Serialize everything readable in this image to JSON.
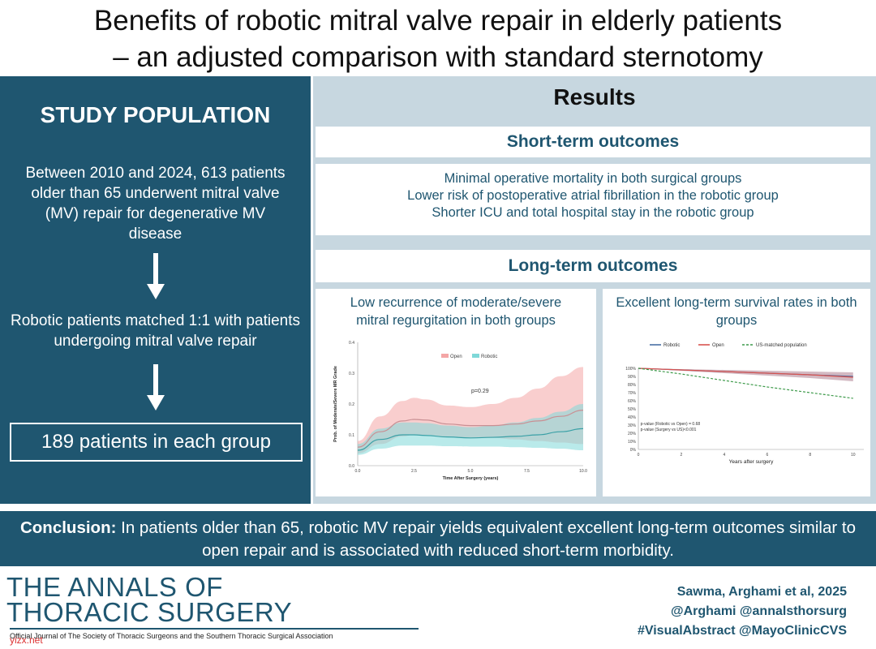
{
  "title": {
    "line1": "Benefits of robotic mitral valve repair in elderly patients",
    "line2": "– an adjusted comparison with standard sternotomy"
  },
  "study_population": {
    "heading": "STUDY POPULATION",
    "description": "Between 2010 and 2024, 613 patients older than 65 underwent mitral valve (MV) repair for degenerative MV disease",
    "matching": "Robotic patients matched 1:1 with patients undergoing mitral valve repair",
    "result_box": "189 patients in each group"
  },
  "results": {
    "heading": "Results",
    "short_term": {
      "title": "Short-term outcomes",
      "items": [
        "Minimal operative mortality in both surgical groups",
        "Lower risk of postoperative atrial fibrillation in the robotic group",
        "Shorter ICU and total hospital stay in the robotic group"
      ]
    },
    "long_term": {
      "title": "Long-term outcomes",
      "mr_card_title": "Low recurrence of moderate/severe mitral regurgitation in both groups",
      "survival_card_title": "Excellent long-term survival rates in both groups"
    }
  },
  "chart_data": [
    {
      "type": "area",
      "title": "Low recurrence of moderate/severe mitral regurgitation in both groups",
      "xlabel": "Time After Surgery (years)",
      "ylabel": "Prob. of Moderate/Severe MR Grade",
      "xlim": [
        0,
        10
      ],
      "ylim": [
        0,
        0.4
      ],
      "xticks": [
        0,
        2.5,
        5,
        7.5,
        10
      ],
      "xtick_labels": [
        "0.0",
        "2.5",
        "5.0",
        "7.5",
        "10.0"
      ],
      "yticks": [
        0,
        0.1,
        0.2,
        0.3,
        0.4
      ],
      "ytick_labels": [
        "0.0",
        "0.1",
        "0.2",
        "0.3",
        "0.4"
      ],
      "annotation": "p=0.29",
      "legend": [
        "Open",
        "Robotic"
      ],
      "x": [
        0,
        1,
        2,
        2.5,
        3,
        4,
        5,
        6,
        7,
        8,
        9,
        10
      ],
      "series": [
        {
          "name": "Open",
          "color": "#f4a6a6",
          "line_color": "#c98f93",
          "values": [
            0.06,
            0.11,
            0.145,
            0.15,
            0.148,
            0.135,
            0.13,
            0.13,
            0.135,
            0.145,
            0.16,
            0.18
          ],
          "lower": [
            0.04,
            0.07,
            0.095,
            0.1,
            0.1,
            0.095,
            0.09,
            0.09,
            0.085,
            0.08,
            0.075,
            0.07
          ],
          "upper": [
            0.08,
            0.16,
            0.21,
            0.22,
            0.215,
            0.195,
            0.19,
            0.2,
            0.22,
            0.25,
            0.29,
            0.32
          ]
        },
        {
          "name": "Robotic",
          "color": "#7fd8d8",
          "line_color": "#3aa0a6",
          "values": [
            0.05,
            0.085,
            0.1,
            0.1,
            0.098,
            0.093,
            0.09,
            0.092,
            0.095,
            0.1,
            0.11,
            0.12
          ],
          "lower": [
            0.035,
            0.055,
            0.065,
            0.065,
            0.065,
            0.063,
            0.062,
            0.062,
            0.06,
            0.058,
            0.055,
            0.05
          ],
          "upper": [
            0.07,
            0.12,
            0.14,
            0.14,
            0.138,
            0.13,
            0.125,
            0.13,
            0.14,
            0.155,
            0.175,
            0.2
          ]
        }
      ]
    },
    {
      "type": "line",
      "title": "Excellent long-term survival rates in both groups",
      "xlabel": "Years after surgery",
      "ylabel": "",
      "xlim": [
        0,
        10.5
      ],
      "ylim": [
        0,
        100
      ],
      "xticks": [
        0,
        2,
        4,
        6,
        8,
        10
      ],
      "xtick_labels": [
        "0",
        "2",
        "4",
        "6",
        "8",
        "10"
      ],
      "yticks": [
        0,
        10,
        20,
        30,
        40,
        50,
        60,
        70,
        80,
        90,
        100
      ],
      "ytick_labels": [
        "0%",
        "10%",
        "20%",
        "30%",
        "40%",
        "50%",
        "60%",
        "70%",
        "80%",
        "90%",
        "100%"
      ],
      "legend": [
        "Robotic",
        "Open",
        "US-matched population"
      ],
      "annotations": [
        "p-value (Robotic vs Open) = 0.68",
        "p-value (Surgery vs US)<0.001"
      ],
      "x": [
        0,
        2,
        4,
        6,
        8,
        10
      ],
      "series": [
        {
          "name": "Robotic",
          "color": "#4a6fa5",
          "values": [
            100,
            98,
            96,
            94,
            92,
            90
          ],
          "lower": [
            100,
            97,
            94,
            91,
            88,
            84
          ],
          "upper": [
            100,
            99,
            98,
            97,
            96,
            95
          ]
        },
        {
          "name": "Open",
          "color": "#d9534f",
          "values": [
            100,
            98,
            96,
            94,
            92,
            89
          ],
          "lower": [
            100,
            97,
            94,
            91,
            88,
            84
          ],
          "upper": [
            100,
            99,
            98,
            97,
            96,
            95
          ]
        },
        {
          "name": "US-matched population",
          "color": "#3d9a4a",
          "values": [
            100,
            93,
            85,
            77,
            70,
            63
          ]
        }
      ]
    }
  ],
  "conclusion": {
    "label": "Conclusion:",
    "text": "In patients older than 65, robotic MV repair yields equivalent excellent long-term outcomes similar to open repair and is associated with reduced short-term morbidity."
  },
  "footer": {
    "journal_line1": "THE ANNALS OF",
    "journal_line2": "THORACIC SURGERY",
    "journal_subtitle": "Official Journal of The Society of Thoracic Surgeons and the Southern Thoracic Surgical Association",
    "authors": "Sawma, Arghami et al, 2025",
    "handles": "@Arghami @annalsthorsurg",
    "hashtags": "#VisualAbstract @MayoClinicCVS",
    "watermark": "yizx.net"
  },
  "colors": {
    "primary": "#1f5670",
    "panel": "#c7d7e0",
    "open": "#f4a6a6",
    "robotic": "#7fd8d8"
  }
}
